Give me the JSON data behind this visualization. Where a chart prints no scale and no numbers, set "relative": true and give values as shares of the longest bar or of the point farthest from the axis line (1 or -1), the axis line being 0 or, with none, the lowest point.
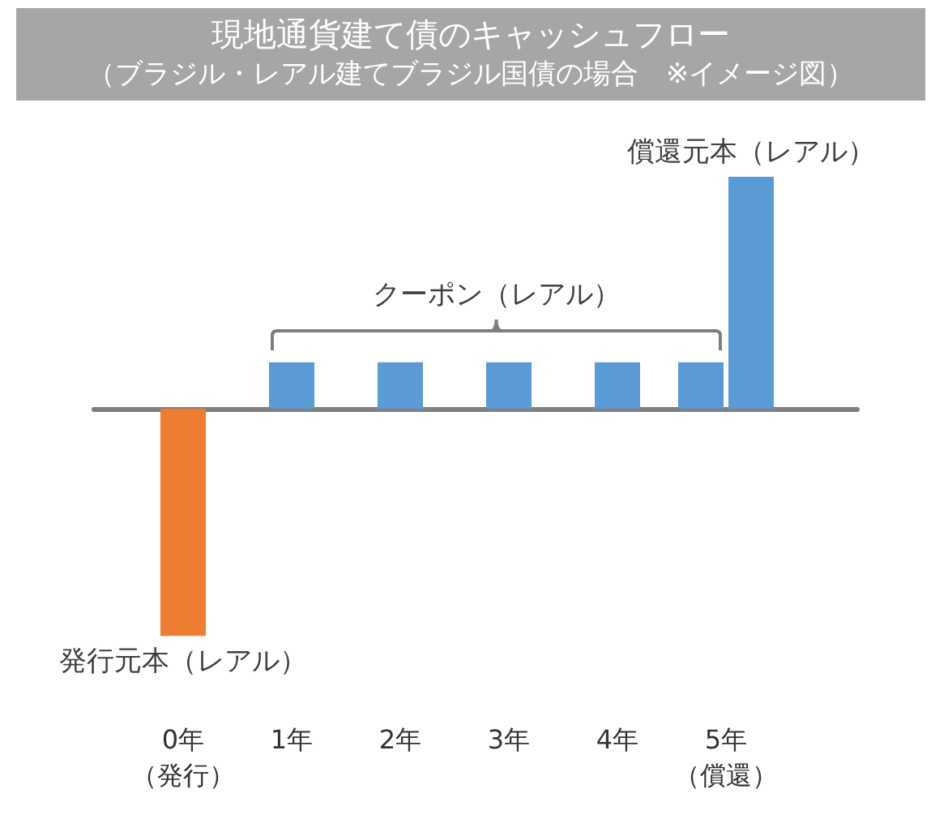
{
  "chart_data": {
    "type": "bar",
    "title": "現地通貨建て債のキャッシュフロー",
    "subtitle": "（ブラジル・レアル建てブラジル国債の場合　※イメージ図）",
    "categories": [
      "0年（発行）",
      "1年",
      "2年",
      "3年",
      "4年",
      "5年（償還）"
    ],
    "relative": true,
    "grid": false,
    "series": [
      {
        "name": "発行元本（レアル）",
        "color": "#ed7d31",
        "values": [
          -0.98,
          null,
          null,
          null,
          null,
          null
        ]
      },
      {
        "name": "クーポン（レアル）",
        "color": "#5b9bd5",
        "values": [
          null,
          0.2,
          0.2,
          0.2,
          0.2,
          0.2
        ]
      },
      {
        "name": "償還元本（レアル）",
        "color": "#5b9bd5",
        "values": [
          null,
          null,
          null,
          null,
          null,
          1
        ]
      }
    ]
  }
}
